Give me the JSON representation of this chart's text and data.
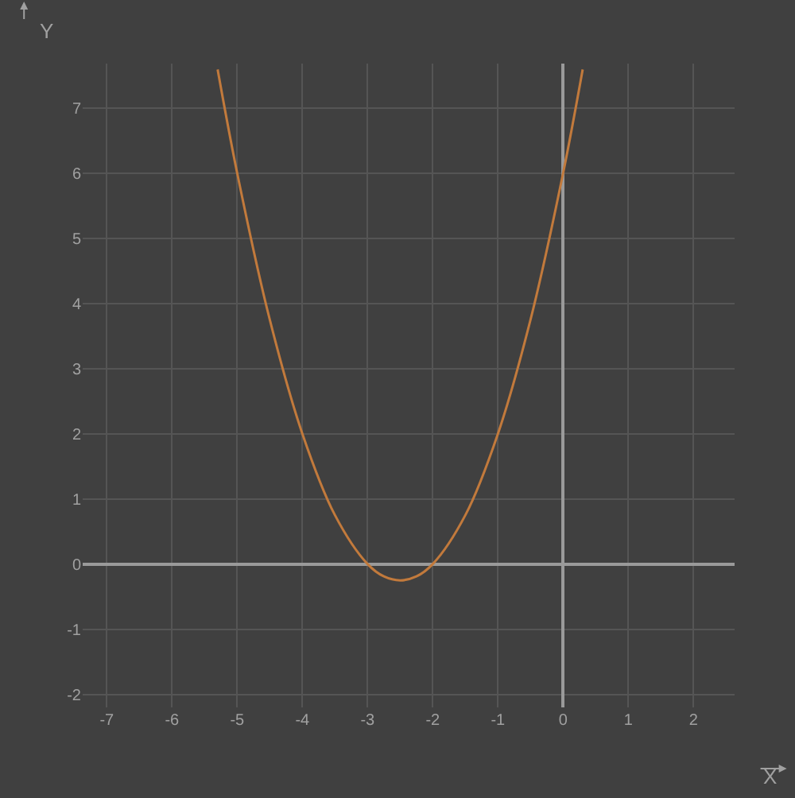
{
  "chart_data": {
    "type": "line",
    "xlabel": "X",
    "ylabel": "Y",
    "x": [
      -5.3,
      -5,
      -4.5,
      -4,
      -3.5,
      -3,
      -2.75,
      -2.5,
      -2.25,
      -2,
      -1.5,
      -1,
      -0.5,
      0,
      0.3
    ],
    "series": [
      {
        "color": "#c27a3c",
        "values": [
          7.59,
          6,
          3.75,
          2,
          0.75,
          0,
          -0.19,
          -0.25,
          -0.19,
          0,
          0.75,
          2,
          3.75,
          6,
          7.59
        ]
      }
    ],
    "xlim": [
      -7.37,
      2.63
    ],
    "ylim": [
      -2.2,
      7.68
    ],
    "xticks": [
      -7,
      -6,
      -5,
      -4,
      -3,
      -2,
      -1,
      0,
      1,
      2
    ],
    "yticks": [
      -2,
      -1,
      0,
      1,
      2,
      3,
      4,
      5,
      6,
      7
    ],
    "grid": true,
    "marker": "none",
    "line_style": "solid"
  }
}
